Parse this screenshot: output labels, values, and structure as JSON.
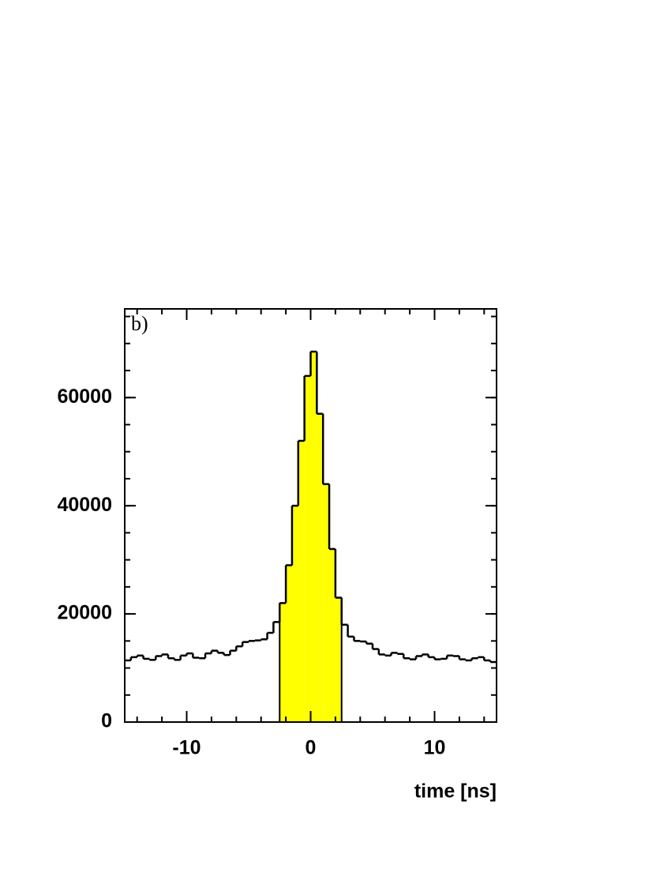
{
  "chart_data": {
    "type": "histogram",
    "annotation": "b)",
    "x_label": "time [ns]",
    "bins": [
      -15,
      -14.5,
      -14,
      -13.5,
      -13,
      -12.5,
      -12,
      -11.5,
      -11,
      -10.5,
      -10,
      -9.5,
      -9,
      -8.5,
      -8,
      -7.5,
      -7,
      -6.5,
      -6,
      -5.5,
      -5,
      -4.5,
      -4,
      -3.5,
      -3,
      -2.5,
      -2,
      -1.5,
      -1,
      -0.5,
      0,
      0.5,
      1,
      1.5,
      2,
      2.5,
      3,
      3.5,
      4,
      4.5,
      5,
      5.5,
      6,
      6.5,
      7,
      7.5,
      8,
      8.5,
      9,
      9.5,
      10,
      10.5,
      11,
      11.5,
      12,
      12.5,
      13,
      13.5,
      14,
      14.5,
      15
    ],
    "values": [
      11400,
      12000,
      12300,
      11700,
      11500,
      12200,
      12500,
      11800,
      11500,
      12300,
      12700,
      11900,
      11800,
      12700,
      13200,
      12800,
      12400,
      13200,
      14000,
      14800,
      15000,
      15100,
      15300,
      16500,
      18500,
      22000,
      29000,
      40000,
      52000,
      64000,
      68500,
      57000,
      44000,
      32000,
      23000,
      18000,
      15800,
      15000,
      14900,
      14500,
      13500,
      12500,
      12300,
      12800,
      12600,
      11800,
      11600,
      12200,
      12500,
      12000,
      11600,
      11700,
      12300,
      12200,
      11600,
      11400,
      11800,
      12000,
      11400,
      11100
    ],
    "color": "#000000",
    "highlight": [
      -2.5,
      2.5
    ],
    "highlight_color": "#ffff00",
    "xlim": [
      -15,
      15
    ],
    "xticks": [
      -10,
      0,
      10
    ],
    "xminorticks": [
      -14,
      -12,
      -10,
      -8,
      -6,
      -4,
      -2,
      0,
      2,
      4,
      6,
      8,
      10,
      12,
      14
    ],
    "ylim": [
      0,
      76400
    ],
    "yticks": [
      0,
      20000,
      40000,
      60000
    ],
    "yminorticks": [
      0,
      5000,
      10000,
      15000,
      20000,
      25000,
      30000,
      35000,
      40000,
      45000,
      50000,
      55000,
      60000,
      65000,
      70000,
      75000
    ]
  }
}
